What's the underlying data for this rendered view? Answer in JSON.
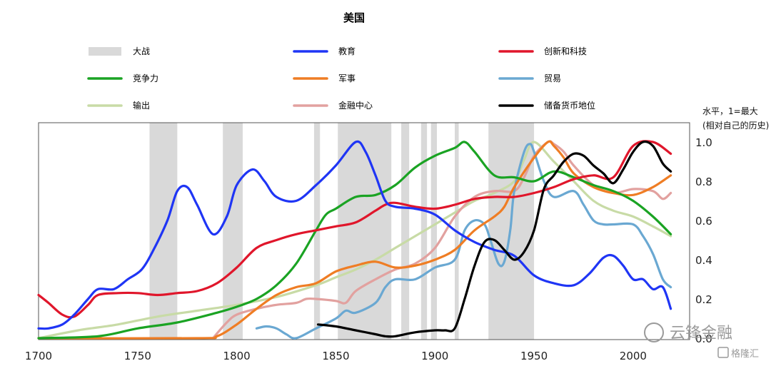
{
  "chart_data": {
    "type": "line",
    "title": "美国",
    "ylabel_note": [
      "水平，1=最大",
      "(相对自己的历史)"
    ],
    "xlim": [
      1700,
      2020
    ],
    "ylim": [
      0,
      1.0
    ],
    "x_ticks": [
      "1700",
      "1750",
      "1800",
      "1850",
      "1900",
      "1950",
      "2000"
    ],
    "y_ticks": [
      "1.0",
      "0.8",
      "0.6",
      "0.4",
      "0.2",
      "0.0"
    ],
    "war_label": "大战",
    "war_periods": [
      [
        1756,
        1770
      ],
      [
        1793,
        1803
      ],
      [
        1839,
        1842
      ],
      [
        1851,
        1878
      ],
      [
        1883,
        1887
      ],
      [
        1893,
        1896
      ],
      [
        1898,
        1901
      ],
      [
        1910,
        1912
      ],
      [
        1927,
        1950
      ]
    ],
    "colors": {
      "war": "#d9d9d9",
      "education": "#1f35f5",
      "innovation": "#e0162b",
      "competitiveness": "#1aa323",
      "military": "#ef7d24",
      "trade": "#6aa8d2",
      "output": "#c8dba6",
      "finance": "#e2a19f",
      "reserve": "#000000"
    },
    "series": [
      {
        "key": "education",
        "name": "教育",
        "x": [
          1700,
          1705,
          1712,
          1718,
          1725,
          1730,
          1738,
          1745,
          1752,
          1758,
          1765,
          1770,
          1775,
          1780,
          1788,
          1795,
          1800,
          1808,
          1814,
          1820,
          1830,
          1840,
          1850,
          1860,
          1865,
          1870,
          1875,
          1880,
          1890,
          1900,
          1910,
          1920,
          1930,
          1940,
          1950,
          1960,
          1970,
          1978,
          1985,
          1990,
          1995,
          2000,
          2005,
          2010,
          2015,
          2019
        ],
        "values": [
          0.05,
          0.05,
          0.07,
          0.12,
          0.2,
          0.25,
          0.25,
          0.3,
          0.35,
          0.45,
          0.6,
          0.75,
          0.77,
          0.68,
          0.53,
          0.62,
          0.78,
          0.86,
          0.8,
          0.72,
          0.7,
          0.78,
          0.88,
          1.0,
          0.95,
          0.83,
          0.7,
          0.67,
          0.66,
          0.63,
          0.55,
          0.49,
          0.45,
          0.42,
          0.32,
          0.28,
          0.27,
          0.33,
          0.41,
          0.42,
          0.37,
          0.3,
          0.3,
          0.25,
          0.26,
          0.15
        ]
      },
      {
        "key": "innovation",
        "name": "创新和科技",
        "x": [
          1700,
          1705,
          1712,
          1718,
          1725,
          1730,
          1740,
          1750,
          1760,
          1770,
          1780,
          1790,
          1800,
          1810,
          1820,
          1830,
          1840,
          1850,
          1860,
          1870,
          1875,
          1880,
          1890,
          1900,
          1910,
          1920,
          1930,
          1940,
          1950,
          1960,
          1970,
          1980,
          1990,
          2000,
          2010,
          2019
        ],
        "values": [
          0.22,
          0.18,
          0.12,
          0.11,
          0.17,
          0.22,
          0.23,
          0.23,
          0.22,
          0.23,
          0.24,
          0.28,
          0.36,
          0.46,
          0.5,
          0.53,
          0.55,
          0.57,
          0.59,
          0.65,
          0.68,
          0.69,
          0.67,
          0.66,
          0.68,
          0.71,
          0.72,
          0.72,
          0.74,
          0.77,
          0.81,
          0.83,
          0.82,
          0.98,
          1.0,
          0.94
        ]
      },
      {
        "key": "competitiveness",
        "name": "竞争力",
        "x": [
          1700,
          1730,
          1750,
          1770,
          1790,
          1800,
          1810,
          1820,
          1830,
          1840,
          1845,
          1850,
          1860,
          1870,
          1880,
          1890,
          1900,
          1910,
          1915,
          1920,
          1930,
          1940,
          1950,
          1960,
          1970,
          1980,
          1990,
          2000,
          2010,
          2019
        ],
        "values": [
          0.0,
          0.01,
          0.05,
          0.08,
          0.13,
          0.16,
          0.2,
          0.27,
          0.38,
          0.55,
          0.63,
          0.66,
          0.72,
          0.73,
          0.78,
          0.87,
          0.93,
          0.97,
          1.0,
          0.95,
          0.83,
          0.82,
          0.8,
          0.85,
          0.82,
          0.78,
          0.75,
          0.7,
          0.62,
          0.53
        ]
      },
      {
        "key": "military",
        "name": "军事",
        "x": [
          1700,
          1780,
          1790,
          1800,
          1810,
          1820,
          1830,
          1840,
          1850,
          1860,
          1870,
          1880,
          1890,
          1900,
          1910,
          1920,
          1930,
          1935,
          1940,
          1950,
          1957,
          1960,
          1965,
          1970,
          1980,
          1990,
          2000,
          2010,
          2019
        ],
        "values": [
          0.0,
          0.0,
          0.01,
          0.07,
          0.15,
          0.22,
          0.26,
          0.28,
          0.34,
          0.37,
          0.39,
          0.36,
          0.37,
          0.4,
          0.45,
          0.55,
          0.62,
          0.67,
          0.77,
          0.92,
          1.0,
          0.98,
          0.92,
          0.84,
          0.77,
          0.74,
          0.73,
          0.77,
          0.83
        ]
      },
      {
        "key": "trade",
        "name": "贸易",
        "x": [
          1810,
          1815,
          1820,
          1825,
          1830,
          1840,
          1850,
          1855,
          1860,
          1870,
          1875,
          1880,
          1890,
          1900,
          1910,
          1915,
          1920,
          1925,
          1928,
          1932,
          1935,
          1938,
          1940,
          1945,
          1948,
          1950,
          1955,
          1960,
          1970,
          1975,
          1980,
          1985,
          1990,
          2000,
          2005,
          2010,
          2015,
          2019
        ],
        "values": [
          0.05,
          0.06,
          0.05,
          0.02,
          0.0,
          0.05,
          0.1,
          0.14,
          0.13,
          0.18,
          0.26,
          0.3,
          0.3,
          0.36,
          0.4,
          0.55,
          0.6,
          0.58,
          0.5,
          0.38,
          0.39,
          0.55,
          0.75,
          0.95,
          0.99,
          0.95,
          0.8,
          0.72,
          0.75,
          0.68,
          0.6,
          0.58,
          0.58,
          0.58,
          0.52,
          0.43,
          0.3,
          0.26
        ]
      },
      {
        "key": "output",
        "name": "输出",
        "x": [
          1700,
          1720,
          1740,
          1760,
          1780,
          1800,
          1820,
          1840,
          1850,
          1860,
          1870,
          1880,
          1890,
          1900,
          1910,
          1920,
          1930,
          1940,
          1945,
          1950,
          1960,
          1970,
          1980,
          1990,
          2000,
          2010,
          2019
        ],
        "values": [
          0.0,
          0.04,
          0.07,
          0.11,
          0.14,
          0.17,
          0.21,
          0.27,
          0.31,
          0.35,
          0.4,
          0.46,
          0.52,
          0.58,
          0.64,
          0.7,
          0.74,
          0.8,
          0.91,
          1.0,
          0.9,
          0.8,
          0.7,
          0.65,
          0.62,
          0.57,
          0.52
        ]
      },
      {
        "key": "finance",
        "name": "金融中心",
        "x": [
          1788,
          1795,
          1800,
          1810,
          1820,
          1830,
          1835,
          1840,
          1850,
          1855,
          1860,
          1870,
          1880,
          1890,
          1900,
          1910,
          1920,
          1930,
          1940,
          1945,
          1950,
          1957,
          1960,
          1965,
          1970,
          1980,
          1990,
          2000,
          2010,
          2015,
          2019
        ],
        "values": [
          0.0,
          0.08,
          0.12,
          0.15,
          0.17,
          0.18,
          0.2,
          0.2,
          0.19,
          0.18,
          0.24,
          0.3,
          0.35,
          0.38,
          0.46,
          0.62,
          0.72,
          0.75,
          0.75,
          0.82,
          0.93,
          1.0,
          0.99,
          0.95,
          0.88,
          0.78,
          0.74,
          0.76,
          0.75,
          0.71,
          0.74
        ]
      },
      {
        "key": "reserve",
        "name": "储备货币地位",
        "x": [
          1841,
          1850,
          1860,
          1870,
          1875,
          1880,
          1890,
          1900,
          1905,
          1910,
          1915,
          1920,
          1925,
          1930,
          1935,
          1940,
          1945,
          1950,
          1955,
          1960,
          1965,
          1970,
          1975,
          1980,
          1985,
          1990,
          1995,
          2000,
          2005,
          2010,
          2015,
          2019
        ],
        "values": [
          0.07,
          0.06,
          0.04,
          0.02,
          0.01,
          0.01,
          0.03,
          0.04,
          0.04,
          0.05,
          0.2,
          0.37,
          0.49,
          0.5,
          0.45,
          0.4,
          0.44,
          0.55,
          0.76,
          0.83,
          0.9,
          0.94,
          0.93,
          0.88,
          0.84,
          0.79,
          0.86,
          0.95,
          1.0,
          0.98,
          0.89,
          0.85
        ]
      }
    ]
  },
  "legend": [
    {
      "key": "war",
      "label": "大战",
      "kind": "box"
    },
    {
      "key": "education",
      "label": "教育",
      "kind": "line"
    },
    {
      "key": "innovation",
      "label": "创新和科技",
      "kind": "line"
    },
    {
      "key": "competitiveness",
      "label": "竞争力",
      "kind": "line"
    },
    {
      "key": "military",
      "label": "军事",
      "kind": "line"
    },
    {
      "key": "trade",
      "label": "贸易",
      "kind": "line"
    },
    {
      "key": "output",
      "label": "输出",
      "kind": "line"
    },
    {
      "key": "finance",
      "label": "金融中心",
      "kind": "line"
    },
    {
      "key": "reserve",
      "label": "储备货币地位",
      "kind": "line"
    }
  ],
  "watermark": {
    "text": "云锋金融",
    "sub": "格隆汇"
  }
}
